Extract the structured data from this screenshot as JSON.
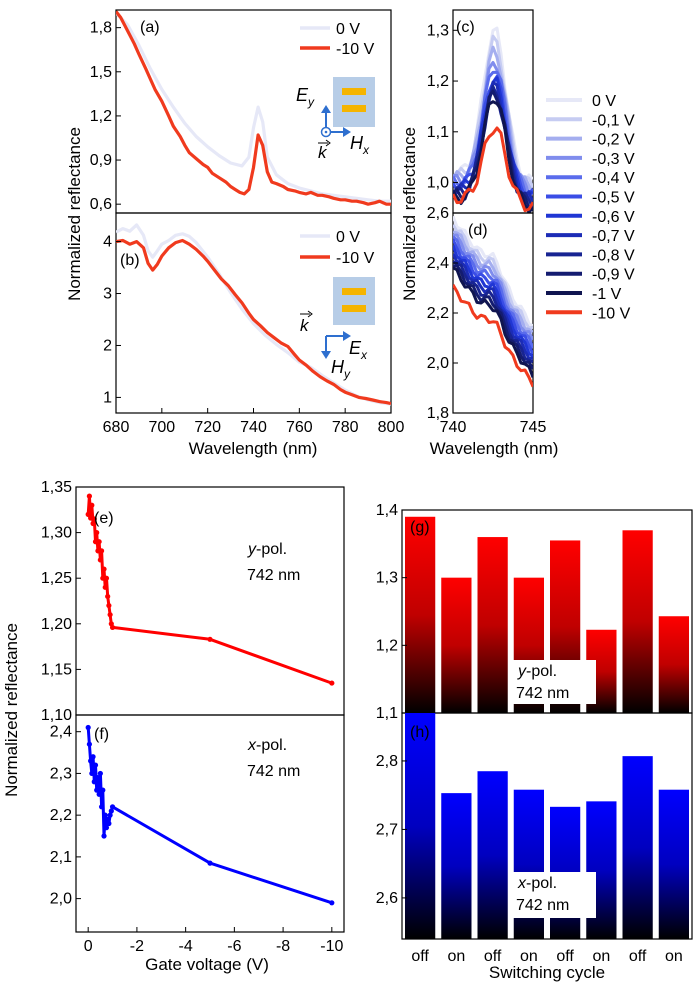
{
  "colors": {
    "v0": "#e6e8f7",
    "v10": "#f03a1e",
    "red": "#ff0000",
    "blue": "#0000ff",
    "pad": "#f5b400",
    "substrate": "#b7cde7",
    "arrow": "#2e6fcf"
  },
  "chart_data": [
    {
      "id": "a",
      "type": "line",
      "panel_label": "(a)",
      "xlim": [
        680,
        800
      ],
      "ylim": [
        0.54,
        1.92
      ],
      "yticks": [
        "0,6",
        "0,9",
        "1,2",
        "1,5",
        "1,8"
      ],
      "ytick_values": [
        0.6,
        0.9,
        1.2,
        1.5,
        1.8
      ],
      "legend": [
        "0 V",
        "-10 V"
      ],
      "inset": {
        "e_label": "E",
        "e_sub": "y",
        "h_label": "H",
        "h_sub": "x",
        "k_label": "k"
      },
      "series": [
        {
          "name": "0 V",
          "x": [
            680,
            685,
            690,
            695,
            700,
            705,
            710,
            715,
            720,
            725,
            730,
            735,
            738,
            740,
            742,
            744,
            746,
            750,
            755,
            760,
            765,
            770,
            775,
            780,
            785,
            790,
            795,
            800
          ],
          "y": [
            1.9,
            1.82,
            1.68,
            1.52,
            1.38,
            1.26,
            1.15,
            1.06,
            0.99,
            0.93,
            0.88,
            0.86,
            0.92,
            1.12,
            1.26,
            1.16,
            0.92,
            0.8,
            0.74,
            0.71,
            0.69,
            0.67,
            0.66,
            0.65,
            0.64,
            0.63,
            0.62,
            0.62
          ]
        },
        {
          "name": "-10 V",
          "x": [
            680,
            682,
            685,
            688,
            690,
            693,
            695,
            697,
            700,
            703,
            705,
            708,
            710,
            712,
            715,
            718,
            720,
            722,
            725,
            728,
            730,
            732,
            734,
            736,
            738,
            740,
            742,
            744,
            746,
            748,
            750,
            753,
            755,
            758,
            760,
            763,
            765,
            768,
            770,
            773,
            775,
            778,
            780,
            783,
            785,
            788,
            790,
            793,
            795,
            798,
            800
          ],
          "y": [
            1.91,
            1.87,
            1.78,
            1.69,
            1.62,
            1.52,
            1.45,
            1.38,
            1.3,
            1.2,
            1.13,
            1.06,
            1.0,
            0.95,
            0.91,
            0.87,
            0.85,
            0.81,
            0.78,
            0.75,
            0.72,
            0.7,
            0.68,
            0.67,
            0.7,
            0.85,
            1.07,
            1.0,
            0.82,
            0.75,
            0.74,
            0.72,
            0.7,
            0.69,
            0.68,
            0.67,
            0.68,
            0.66,
            0.66,
            0.65,
            0.64,
            0.63,
            0.63,
            0.62,
            0.62,
            0.61,
            0.6,
            0.61,
            0.62,
            0.6,
            0.6
          ]
        }
      ]
    },
    {
      "id": "b",
      "type": "line",
      "panel_label": "(b)",
      "xlim": [
        680,
        800
      ],
      "ylim": [
        0.7,
        4.55
      ],
      "xticks": [
        "680",
        "700",
        "720",
        "740",
        "760",
        "780",
        "800"
      ],
      "xtick_values": [
        680,
        700,
        720,
        740,
        760,
        780,
        800
      ],
      "yticks": [
        "1",
        "2",
        "3",
        "4"
      ],
      "ytick_values": [
        1,
        2,
        3,
        4
      ],
      "xlabel": "Wavelength (nm)",
      "legend": [
        "0 V",
        "-10 V"
      ],
      "inset": {
        "e_label": "E",
        "e_sub": "x",
        "h_label": "H",
        "h_sub": "y",
        "k_label": "k"
      },
      "series": [
        {
          "name": "0 V",
          "x": [
            680,
            683,
            686,
            689,
            692,
            694,
            696,
            698,
            700,
            703,
            706,
            709,
            712,
            715,
            720,
            725,
            730,
            735,
            740,
            745,
            750,
            755,
            760,
            765,
            770,
            775,
            780,
            785,
            790,
            795,
            800
          ],
          "y": [
            4.18,
            4.25,
            4.2,
            4.32,
            4.12,
            3.82,
            3.7,
            3.82,
            3.95,
            4.02,
            4.12,
            4.15,
            4.1,
            3.98,
            3.7,
            3.38,
            3.02,
            2.7,
            2.42,
            2.2,
            2.02,
            1.86,
            1.68,
            1.58,
            1.42,
            1.28,
            1.14,
            1.03,
            0.95,
            0.9,
            0.87
          ]
        },
        {
          "name": "-10 V",
          "x": [
            680,
            683,
            686,
            689,
            692,
            694,
            696,
            698,
            700,
            703,
            706,
            709,
            712,
            715,
            718,
            720,
            723,
            726,
            729,
            732,
            735,
            738,
            740,
            743,
            746,
            749,
            752,
            755,
            758,
            760,
            763,
            766,
            769,
            772,
            775,
            778,
            780,
            783,
            786,
            789,
            792,
            795,
            798,
            800
          ],
          "y": [
            4.0,
            4.02,
            3.95,
            4.0,
            3.88,
            3.58,
            3.45,
            3.56,
            3.72,
            3.88,
            3.98,
            4.02,
            3.95,
            3.85,
            3.72,
            3.62,
            3.45,
            3.28,
            3.15,
            2.98,
            2.82,
            2.62,
            2.5,
            2.38,
            2.25,
            2.15,
            2.05,
            1.98,
            1.82,
            1.72,
            1.62,
            1.5,
            1.4,
            1.32,
            1.25,
            1.15,
            1.1,
            1.05,
            1.0,
            0.98,
            0.95,
            0.92,
            0.9,
            0.88
          ]
        }
      ]
    },
    {
      "id": "c",
      "type": "line",
      "panel_label": "(c)",
      "xlim": [
        740,
        745
      ],
      "ylim": [
        0.94,
        1.34
      ],
      "yticks": [
        "1,0",
        "1,1",
        "1,2",
        "1,3"
      ],
      "ytick_values": [
        1.0,
        1.1,
        1.2,
        1.3
      ],
      "peaks": [
        1.31,
        1.29,
        1.27,
        1.25,
        1.24,
        1.22,
        1.21,
        1.2,
        1.19,
        1.19,
        1.18,
        1.12
      ],
      "series_names": [
        "0 V",
        "-0,1 V",
        "-0,2 V",
        "-0,3 V",
        "-0,4 V",
        "-0,5 V",
        "-0,6 V",
        "-0,7 V",
        "-0,8 V",
        "-0,9 V",
        "-1 V",
        "-10 V"
      ]
    },
    {
      "id": "d",
      "type": "line",
      "panel_label": "(d)",
      "xlim": [
        740,
        745
      ],
      "ylim": [
        1.8,
        2.6
      ],
      "xticks": [
        "740",
        "745"
      ],
      "xtick_values": [
        740,
        745
      ],
      "yticks": [
        "1,8",
        "2,0",
        "2,2",
        "2,4",
        "2,6"
      ],
      "ytick_values": [
        1.8,
        2.0,
        2.2,
        2.4,
        2.6
      ],
      "xlabel": "Wavelength (nm)",
      "starts": [
        2.58,
        2.56,
        2.54,
        2.52,
        2.5,
        2.48,
        2.46,
        2.44,
        2.42,
        2.4,
        2.38,
        2.3
      ],
      "ends": [
        2.15,
        2.13,
        2.11,
        2.09,
        2.07,
        2.05,
        2.03,
        2.01,
        1.99,
        1.97,
        1.95,
        1.92
      ]
    },
    {
      "id": "e",
      "type": "line",
      "panel_label": "(e)",
      "xlim": [
        0.5,
        -10.5
      ],
      "ylim": [
        1.1,
        1.35
      ],
      "yticks": [
        "1,10",
        "1,15",
        "1,20",
        "1,25",
        "1,30",
        "1,35"
      ],
      "ytick_values": [
        1.1,
        1.15,
        1.2,
        1.25,
        1.3,
        1.35
      ],
      "annotation": {
        "pol": "y",
        "pol_suffix": "-pol.",
        "wavelength": "742 nm"
      },
      "series": [
        {
          "name": "y-pol.",
          "x": [
            0,
            -0.05,
            -0.1,
            -0.15,
            -0.2,
            -0.25,
            -0.3,
            -0.35,
            -0.4,
            -0.45,
            -0.5,
            -0.55,
            -0.6,
            -0.65,
            -0.7,
            -0.75,
            -0.8,
            -0.85,
            -0.9,
            -0.95,
            -1,
            -5,
            -10
          ],
          "y": [
            1.32,
            1.34,
            1.316,
            1.33,
            1.31,
            1.315,
            1.29,
            1.3,
            1.28,
            1.29,
            1.27,
            1.28,
            1.25,
            1.26,
            1.24,
            1.25,
            1.23,
            1.22,
            1.21,
            1.2,
            1.196,
            1.183,
            1.135
          ]
        }
      ]
    },
    {
      "id": "f",
      "type": "line",
      "panel_label": "(f)",
      "xlim": [
        0.5,
        -10.5
      ],
      "ylim": [
        1.92,
        2.44
      ],
      "xticks": [
        "0",
        "-2",
        "-4",
        "-6",
        "-8",
        "-10"
      ],
      "xtick_values": [
        0,
        -2,
        -4,
        -6,
        -8,
        -10
      ],
      "yticks": [
        "2,0",
        "2,1",
        "2,2",
        "2,3",
        "2,4"
      ],
      "ytick_values": [
        2.0,
        2.1,
        2.2,
        2.3,
        2.4
      ],
      "xlabel": "Gate voltage (V)",
      "annotation": {
        "pol": "x",
        "pol_suffix": "-pol.",
        "wavelength": "742 nm"
      },
      "series": [
        {
          "name": "x-pol.",
          "x": [
            0,
            -0.05,
            -0.1,
            -0.15,
            -0.2,
            -0.25,
            -0.3,
            -0.35,
            -0.4,
            -0.45,
            -0.5,
            -0.55,
            -0.6,
            -0.65,
            -0.7,
            -0.75,
            -0.8,
            -0.85,
            -0.9,
            -0.95,
            -1,
            -5,
            -10
          ],
          "y": [
            2.41,
            2.37,
            2.33,
            2.3,
            2.34,
            2.28,
            2.32,
            2.26,
            2.29,
            2.25,
            2.3,
            2.22,
            2.26,
            2.15,
            2.2,
            2.17,
            2.19,
            2.18,
            2.2,
            2.21,
            2.22,
            2.085,
            1.99
          ]
        }
      ]
    },
    {
      "id": "g",
      "type": "bar",
      "panel_label": "(g)",
      "ylim": [
        1.1,
        1.4
      ],
      "yticks": [
        "1,1",
        "1,2",
        "1,3",
        "1,4"
      ],
      "ytick_values": [
        1.1,
        1.2,
        1.3,
        1.4
      ],
      "categories": [
        "off",
        "on",
        "off",
        "on",
        "off",
        "on",
        "off",
        "on"
      ],
      "values": [
        1.39,
        1.3,
        1.36,
        1.3,
        1.355,
        1.223,
        1.37,
        1.243
      ],
      "annotation": {
        "pol": "y",
        "pol_suffix": "-pol.",
        "wavelength": "742 nm"
      }
    },
    {
      "id": "h",
      "type": "bar",
      "panel_label": "(h)",
      "ylim": [
        2.54,
        2.87
      ],
      "yticks": [
        "2,6",
        "2,7",
        "2,8"
      ],
      "ytick_values": [
        2.6,
        2.7,
        2.8
      ],
      "categories": [
        "off",
        "on",
        "off",
        "on",
        "off",
        "on",
        "off",
        "on"
      ],
      "values": [
        2.87,
        2.753,
        2.785,
        2.758,
        2.733,
        2.741,
        2.807,
        2.758
      ],
      "xlabel": "Switching cycle",
      "annotation": {
        "pol": "x",
        "pol_suffix": "-pol.",
        "wavelength": "742 nm"
      }
    }
  ],
  "shared": {
    "ylabel": "Normalized reflectance",
    "legend_cd": [
      "0 V",
      "-0,1 V",
      "-0,2 V",
      "-0,3 V",
      "-0,4 V",
      "-0,5 V",
      "-0,6 V",
      "-0,7 V",
      "-0,8 V",
      "-0,9 V",
      "-1 V",
      "-10 V"
    ],
    "legend_cd_colors": [
      "#e6e8f7",
      "#c6ccf2",
      "#a4aeef",
      "#808ded",
      "#5a6cec",
      "#3a4de6",
      "#2036d4",
      "#1c2cb6",
      "#182492",
      "#141c70",
      "#101550",
      "#f03a1e"
    ]
  }
}
